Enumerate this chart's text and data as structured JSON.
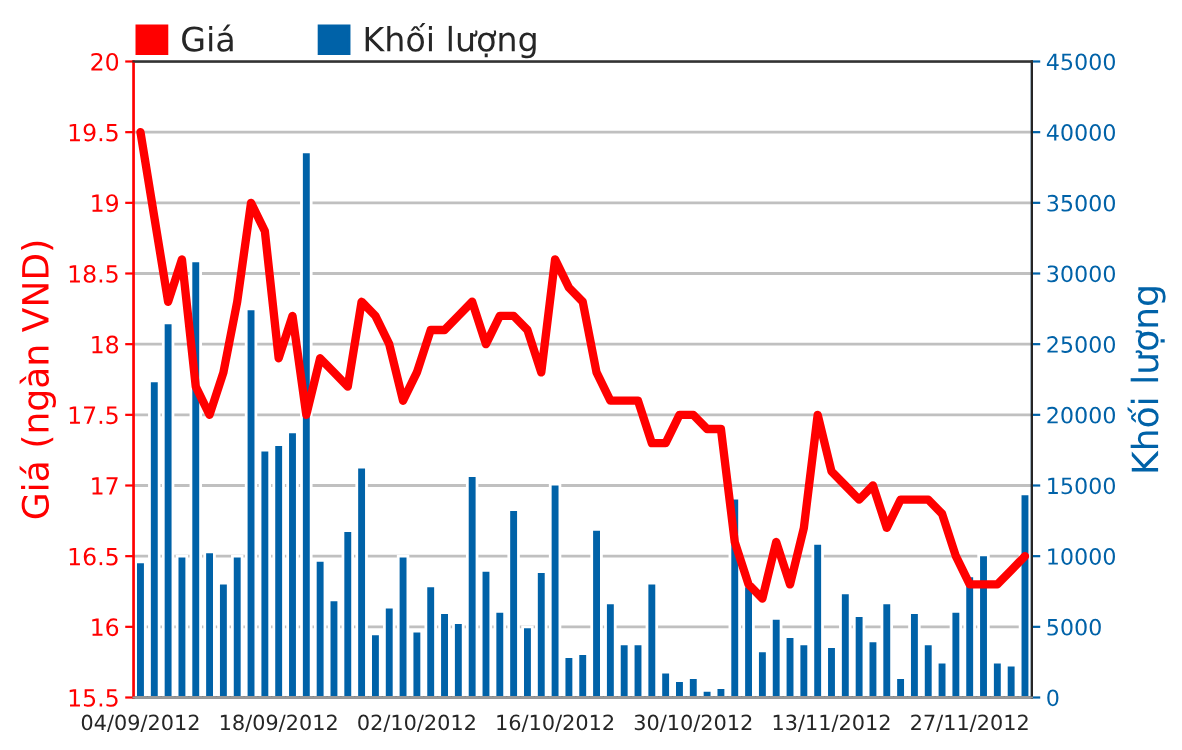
{
  "chart_data": {
    "type": "bar",
    "categories": [
      "04/09/2012",
      null,
      null,
      null,
      null,
      null,
      null,
      null,
      null,
      null,
      "18/09/2012",
      null,
      null,
      null,
      null,
      null,
      null,
      null,
      null,
      null,
      "02/10/2012",
      null,
      null,
      null,
      null,
      null,
      null,
      null,
      null,
      null,
      "16/10/2012",
      null,
      null,
      null,
      null,
      null,
      null,
      null,
      null,
      null,
      "30/10/2012",
      null,
      null,
      null,
      null,
      null,
      null,
      null,
      null,
      null,
      "13/11/2012",
      null,
      null,
      null,
      null,
      null,
      null,
      null,
      null,
      null,
      "27/11/2012",
      null,
      null,
      null,
      null
    ],
    "series": [
      {
        "name": "Khối lượng",
        "axis": "y2",
        "color": "#0062a8",
        "values": [
          9600,
          22400,
          26500,
          10000,
          30900,
          10300,
          8100,
          10000,
          27500,
          17500,
          17900,
          18800,
          38600,
          9700,
          6900,
          11800,
          16300,
          4500,
          6400,
          10000,
          4700,
          7900,
          6000,
          5300,
          15700,
          9000,
          6100,
          13300,
          5000,
          8900,
          15100,
          2900,
          3100,
          11900,
          6700,
          3800,
          3800,
          8100,
          1800,
          1200,
          1400,
          500,
          700,
          14100,
          7900,
          3300,
          5600,
          4300,
          3800,
          10900,
          3600,
          7400,
          5800,
          4000,
          6700,
          1400,
          6000,
          3800,
          2500,
          6100,
          8600,
          10100,
          2500,
          2300,
          14400
        ]
      },
      {
        "name": "Giá",
        "type": "line",
        "axis": "y",
        "color": "#ff0000",
        "values": [
          19.5,
          18.9,
          18.3,
          18.6,
          17.7,
          17.5,
          17.8,
          18.3,
          19.0,
          18.8,
          17.9,
          18.2,
          17.5,
          17.9,
          17.8,
          17.7,
          18.3,
          18.2,
          18.0,
          17.6,
          17.8,
          18.1,
          18.1,
          18.2,
          18.3,
          18.0,
          18.2,
          18.2,
          18.1,
          17.8,
          18.6,
          18.4,
          18.3,
          17.8,
          17.6,
          17.6,
          17.6,
          17.3,
          17.3,
          17.5,
          17.5,
          17.4,
          17.4,
          16.6,
          16.3,
          16.2,
          16.6,
          16.3,
          16.7,
          17.5,
          17.1,
          17.0,
          16.9,
          17.0,
          16.7,
          16.9,
          16.9,
          16.9,
          16.8,
          16.5,
          16.3,
          16.3,
          16.3,
          16.4,
          16.5
        ]
      }
    ],
    "ylabel": "Giá (ngàn VND)",
    "y2label": "Khối lượng",
    "ylim": [
      15.5,
      20
    ],
    "yticks": [
      15.5,
      16,
      16.5,
      17,
      17.5,
      18,
      18.5,
      19,
      19.5,
      20
    ],
    "y2lim": [
      0,
      45000
    ],
    "y2ticks": [
      0,
      5000,
      10000,
      15000,
      20000,
      25000,
      30000,
      35000,
      40000,
      45000
    ],
    "grid": "y",
    "legend": "top left",
    "line_style": "solid",
    "marker": "none"
  }
}
